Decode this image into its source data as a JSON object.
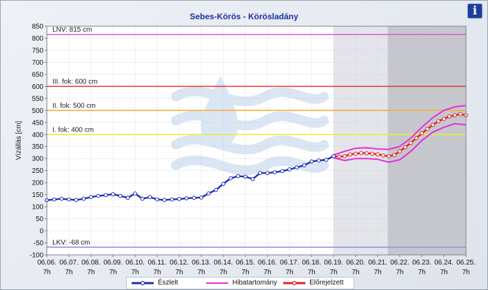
{
  "header": {
    "title": "Sebes-Körös - Körösladány",
    "info_icon": "info-icon",
    "info_glyph": "i"
  },
  "chart_data": {
    "type": "line",
    "title": "Sebes-Körös - Körösladány",
    "ylabel": "Vízállás [cm]",
    "xlabel": "",
    "ylim": [
      -100,
      850
    ],
    "yticks": [
      -100,
      -50,
      0,
      50,
      100,
      150,
      200,
      250,
      300,
      350,
      400,
      450,
      500,
      550,
      600,
      650,
      700,
      750,
      800,
      850
    ],
    "xlim": [
      0,
      19
    ],
    "grid": true,
    "legend": "bottom",
    "x_categories": [
      [
        "06.06.",
        "7h"
      ],
      [
        "06.07.",
        "7h"
      ],
      [
        "06.08.",
        "7h"
      ],
      [
        "06.09.",
        "7h"
      ],
      [
        "06.10.",
        "7h"
      ],
      [
        "06.11.",
        "7h"
      ],
      [
        "06.12.",
        "7h"
      ],
      [
        "06.13.",
        "7h"
      ],
      [
        "06.14.",
        "7h"
      ],
      [
        "06.15.",
        "7h"
      ],
      [
        "06.16.",
        "7h"
      ],
      [
        "06.17.",
        "7h"
      ],
      [
        "06.18.",
        "7h"
      ],
      [
        "06.19.",
        "7h"
      ],
      [
        "06.20.",
        "7h"
      ],
      [
        "06.21.",
        "7h"
      ],
      [
        "06.22.",
        "7h"
      ],
      [
        "06.23.",
        "7h"
      ],
      [
        "06.24.",
        "7h"
      ],
      [
        "06.25.",
        "7h"
      ]
    ],
    "shaded_regions": [
      {
        "from": 13.0,
        "to": 15.45,
        "color": "#e4e5ea"
      },
      {
        "from": 15.45,
        "to": 19.0,
        "color": "#c6c7cc"
      }
    ],
    "reference_lines": [
      {
        "label": "LNV: 815 cm",
        "value": 815,
        "color": "#e25fd6"
      },
      {
        "label": "III. fok: 600 cm",
        "value": 600,
        "color": "#e53030"
      },
      {
        "label": "II. fok: 500 cm",
        "value": 500,
        "color": "#f2ad3a"
      },
      {
        "label": "I. fok: 400 cm",
        "value": 400,
        "color": "#ecec3c"
      },
      {
        "label": "LKV: -68 cm",
        "value": -68,
        "color": "#8f8fe8"
      }
    ],
    "series": [
      {
        "name": "Észlelt",
        "color": "#1a2fb0",
        "x": [
          0,
          0.33,
          0.67,
          1,
          1.33,
          1.67,
          2,
          2.33,
          2.67,
          3,
          3.33,
          3.67,
          4,
          4.33,
          4.67,
          5,
          5.33,
          5.67,
          6,
          6.33,
          6.67,
          7,
          7.33,
          7.67,
          8,
          8.33,
          8.67,
          9,
          9.33,
          9.67,
          10,
          10.33,
          10.67,
          11,
          11.33,
          11.67,
          12,
          12.33,
          12.67,
          13
        ],
        "y": [
          127,
          130,
          133,
          130,
          128,
          133,
          140,
          145,
          148,
          152,
          145,
          137,
          155,
          133,
          140,
          130,
          128,
          130,
          132,
          135,
          137,
          138,
          155,
          170,
          195,
          218,
          227,
          225,
          215,
          240,
          240,
          243,
          248,
          255,
          263,
          272,
          288,
          292,
          295,
          310
        ]
      },
      {
        "name": "Hibatartomány",
        "color": "#e22fd8",
        "upper": {
          "x": [
            13,
            13.5,
            14,
            14.5,
            15,
            15.5,
            16,
            16.5,
            17,
            17.5,
            18,
            18.5,
            19
          ],
          "y": [
            315,
            330,
            343,
            345,
            340,
            338,
            350,
            385,
            430,
            470,
            500,
            515,
            520
          ]
        },
        "lower": {
          "x": [
            13,
            13.5,
            14,
            14.5,
            15,
            15.5,
            16,
            16.5,
            17,
            17.5,
            18,
            18.5,
            19
          ],
          "y": [
            303,
            292,
            300,
            300,
            297,
            285,
            295,
            330,
            375,
            410,
            430,
            445,
            440
          ]
        }
      },
      {
        "name": "Előrejelzett",
        "color": "#e02020",
        "x": [
          13,
          13.25,
          13.5,
          13.75,
          14,
          14.25,
          14.5,
          14.75,
          15,
          15.25,
          15.5,
          15.75,
          16,
          16.25,
          16.5,
          16.75,
          17,
          17.25,
          17.5,
          17.75,
          18,
          18.25,
          18.5,
          18.75,
          19
        ],
        "y": [
          310,
          308,
          310,
          317,
          320,
          323,
          322,
          320,
          318,
          313,
          310,
          315,
          330,
          347,
          365,
          385,
          405,
          423,
          440,
          455,
          465,
          475,
          480,
          485,
          480
        ]
      }
    ]
  }
}
